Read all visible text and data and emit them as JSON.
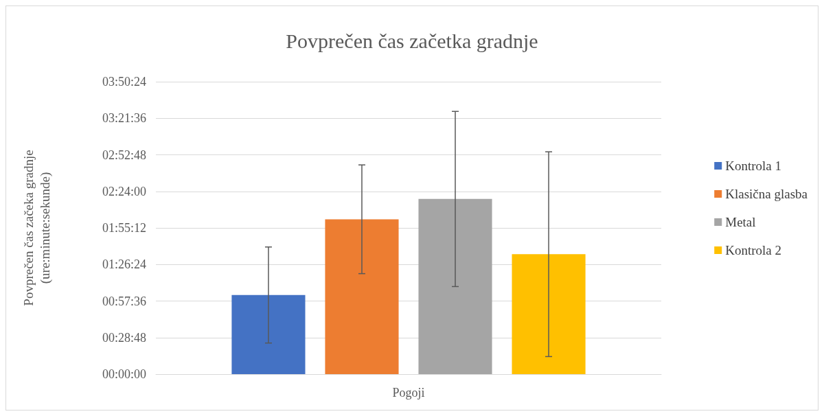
{
  "chart_data": {
    "type": "bar",
    "title": "Povprečen čas začetka gradnje",
    "ylabel": "Povprečen čas začeka gradnje\n(ure:minute:sekunde)",
    "categories": [
      "Pogoji"
    ],
    "series": [
      {
        "name": "Kontrola 1",
        "color": "#4472c4",
        "values": [
          3740
        ],
        "errors": [
          2270
        ]
      },
      {
        "name": "Klasična glasba",
        "color": "#ed7d31",
        "values": [
          7320
        ],
        "errors": [
          2570
        ]
      },
      {
        "name": "Metal",
        "color": "#a5a5a5",
        "values": [
          8280
        ],
        "errors": [
          4140
        ]
      },
      {
        "name": "Kontrola 2",
        "color": "#ffc000",
        "values": [
          5670
        ],
        "errors": [
          4840
        ]
      }
    ],
    "ylim": [
      0,
      13824
    ],
    "yticks": [
      {
        "value": 0,
        "label": "00:00:00"
      },
      {
        "value": 1728,
        "label": "00:28:48"
      },
      {
        "value": 3456,
        "label": "00:57:36"
      },
      {
        "value": 5184,
        "label": "01:26:24"
      },
      {
        "value": 6912,
        "label": "01:55:12"
      },
      {
        "value": 8640,
        "label": "02:24:00"
      },
      {
        "value": 10368,
        "label": "02:52:48"
      },
      {
        "value": 12096,
        "label": "03:21:36"
      },
      {
        "value": 13824,
        "label": "03:50:24"
      }
    ],
    "grid": "y",
    "legend": "right"
  }
}
